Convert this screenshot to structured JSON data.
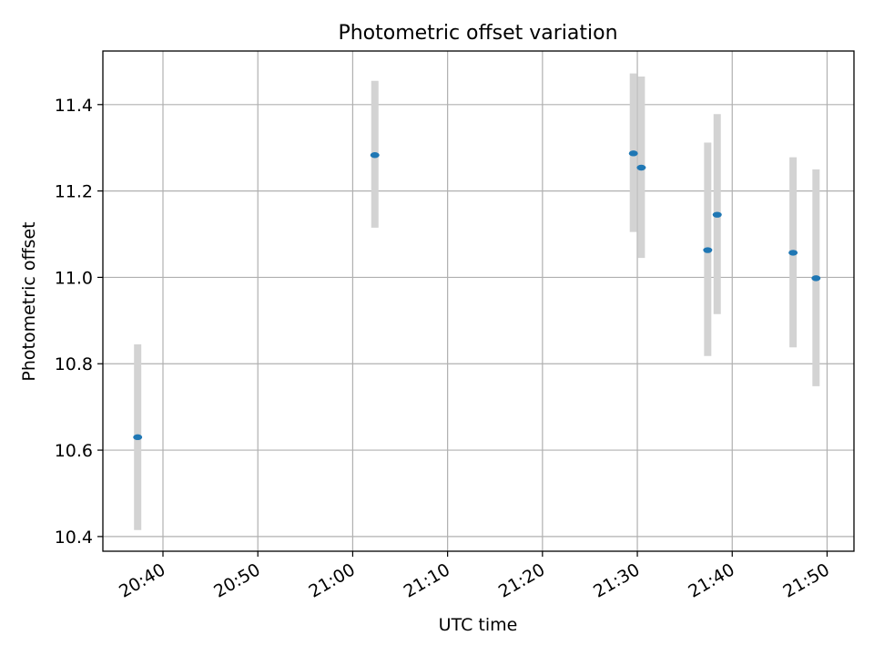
{
  "chart_data": {
    "type": "scatter",
    "title": "Photometric offset variation",
    "xlabel": "UTC time",
    "ylabel": "Photometric offset",
    "x_tick_labels": [
      "20:40",
      "20:50",
      "21:00",
      "21:10",
      "21:20",
      "21:30",
      "21:40",
      "21:50"
    ],
    "x_ticks": [
      "20:40",
      "20:50",
      "21:00",
      "21:10",
      "21:20",
      "21:30",
      "21:40",
      "21:50"
    ],
    "xlim": [
      "20:33:40",
      "21:52:50"
    ],
    "y_ticks": [
      10.4,
      10.6,
      10.8,
      11.0,
      11.2,
      11.4
    ],
    "y_tick_labels": [
      "10.4",
      "10.6",
      "10.8",
      "11.0",
      "11.2",
      "11.4"
    ],
    "ylim": [
      10.366,
      11.524
    ],
    "grid": true,
    "points": [
      {
        "x": "20:37:20",
        "y": 10.63,
        "y_low": 10.415,
        "y_high": 10.845
      },
      {
        "x": "21:02:20",
        "y": 11.283,
        "y_low": 11.115,
        "y_high": 11.455
      },
      {
        "x": "21:29:35",
        "y": 11.287,
        "y_low": 11.105,
        "y_high": 11.472
      },
      {
        "x": "21:30:25",
        "y": 11.254,
        "y_low": 11.045,
        "y_high": 11.465
      },
      {
        "x": "21:37:25",
        "y": 11.063,
        "y_low": 10.818,
        "y_high": 11.312
      },
      {
        "x": "21:38:25",
        "y": 11.145,
        "y_low": 10.915,
        "y_high": 11.378
      },
      {
        "x": "21:46:25",
        "y": 11.057,
        "y_low": 10.838,
        "y_high": 11.278
      },
      {
        "x": "21:48:50",
        "y": 10.998,
        "y_low": 10.748,
        "y_high": 11.25
      }
    ],
    "colors": {
      "marker": "#1f77b4",
      "errorbar": "#d3d3d3",
      "grid": "#b0b0b0"
    }
  }
}
